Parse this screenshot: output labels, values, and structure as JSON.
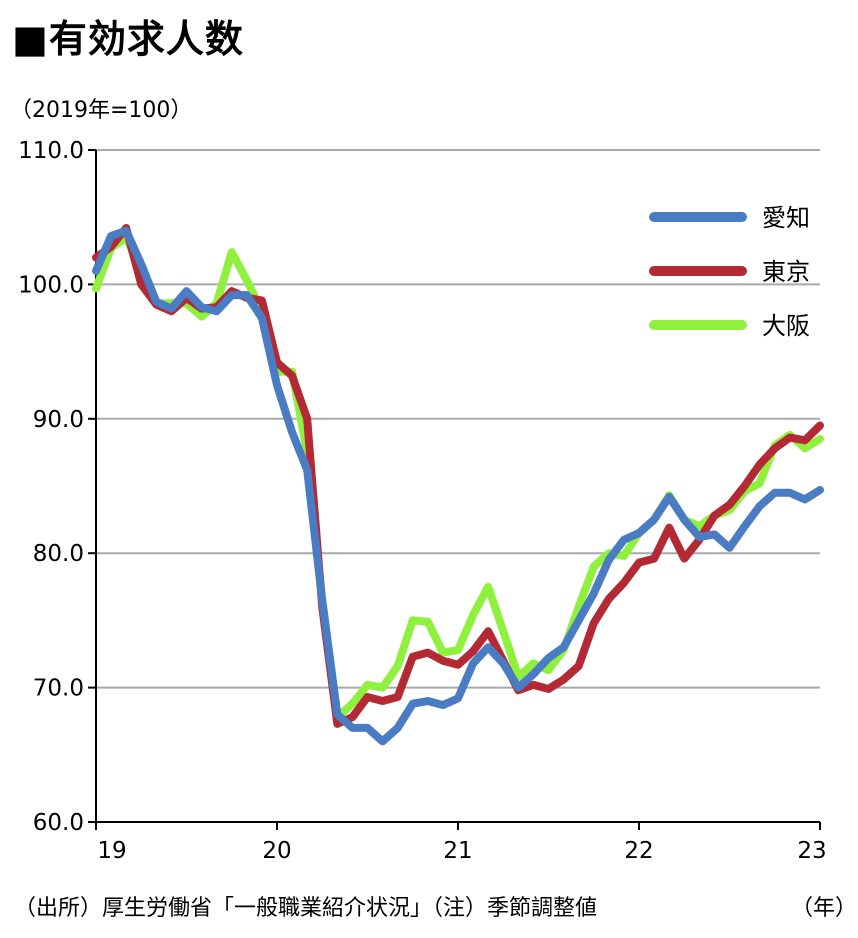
{
  "title": "■有効求人数",
  "unit_label": "（2019年=100）",
  "source_note": "（出所）厚生労働省「一般職業紹介状況」（注）季節調整値",
  "x_unit_label": "（年）",
  "chart_data": {
    "type": "line",
    "title": "■有効求人数",
    "ylabel": "（2019年=100）",
    "xlabel": "（年）",
    "ylim": [
      60,
      110
    ],
    "yticks": [
      "60.0",
      "70.0",
      "80.0",
      "90.0",
      "100.0",
      "110.0"
    ],
    "xticks": [
      "19",
      "20",
      "21",
      "22",
      "23"
    ],
    "xlim": [
      0,
      48
    ],
    "grid": true,
    "legend_position": "top-right",
    "series": [
      {
        "name": "愛知",
        "color": "#4a7cc4",
        "values": [
          101,
          103.6,
          104,
          101.5,
          98.7,
          98.2,
          99.5,
          98.3,
          98,
          99.2,
          99.2,
          97.5,
          92.5,
          89,
          86.2,
          76.5,
          68,
          67,
          67,
          66,
          67,
          68.8,
          69,
          68.7,
          69.2,
          71.8,
          73,
          71.8,
          70,
          71,
          72.2,
          73,
          75,
          77,
          79.5,
          81,
          81.5,
          82.5,
          84.2,
          82.5,
          81.2,
          81.4,
          80.4,
          82,
          83.5,
          84.5,
          84.5,
          84,
          84.7
        ]
      },
      {
        "name": "東京",
        "color": "#b32a34",
        "values": [
          102,
          102.8,
          104.2,
          100,
          98.5,
          98,
          99,
          98.2,
          98.3,
          99.5,
          99,
          98.8,
          94.2,
          93.2,
          90,
          76,
          67.3,
          67.8,
          69.3,
          69,
          69.3,
          72.3,
          72.6,
          72,
          71.7,
          72.7,
          74.2,
          72,
          69.8,
          70.2,
          69.9,
          70.6,
          71.6,
          74.8,
          76.6,
          77.8,
          79.3,
          79.6,
          81.9,
          79.6,
          81,
          82.8,
          83.6,
          85,
          86.6,
          87.8,
          88.6,
          88.4,
          89.5
        ]
      },
      {
        "name": "大阪",
        "color": "#8ff03e",
        "values": [
          99.7,
          102.7,
          103.5,
          101,
          98.6,
          98.6,
          98.6,
          97.6,
          98.6,
          102.4,
          100.3,
          98,
          93.5,
          93.5,
          87.5,
          76.5,
          67.8,
          68.8,
          70.2,
          70,
          71.6,
          75,
          74.9,
          72.6,
          72.8,
          75.4,
          77.5,
          74.2,
          70.8,
          71.8,
          71.3,
          72.8,
          76,
          79,
          80,
          79.8,
          81.5,
          82.5,
          84.3,
          82.5,
          82,
          82.8,
          83.2,
          84.6,
          85.2,
          88,
          88.8,
          87.8,
          88.5
        ]
      }
    ]
  }
}
